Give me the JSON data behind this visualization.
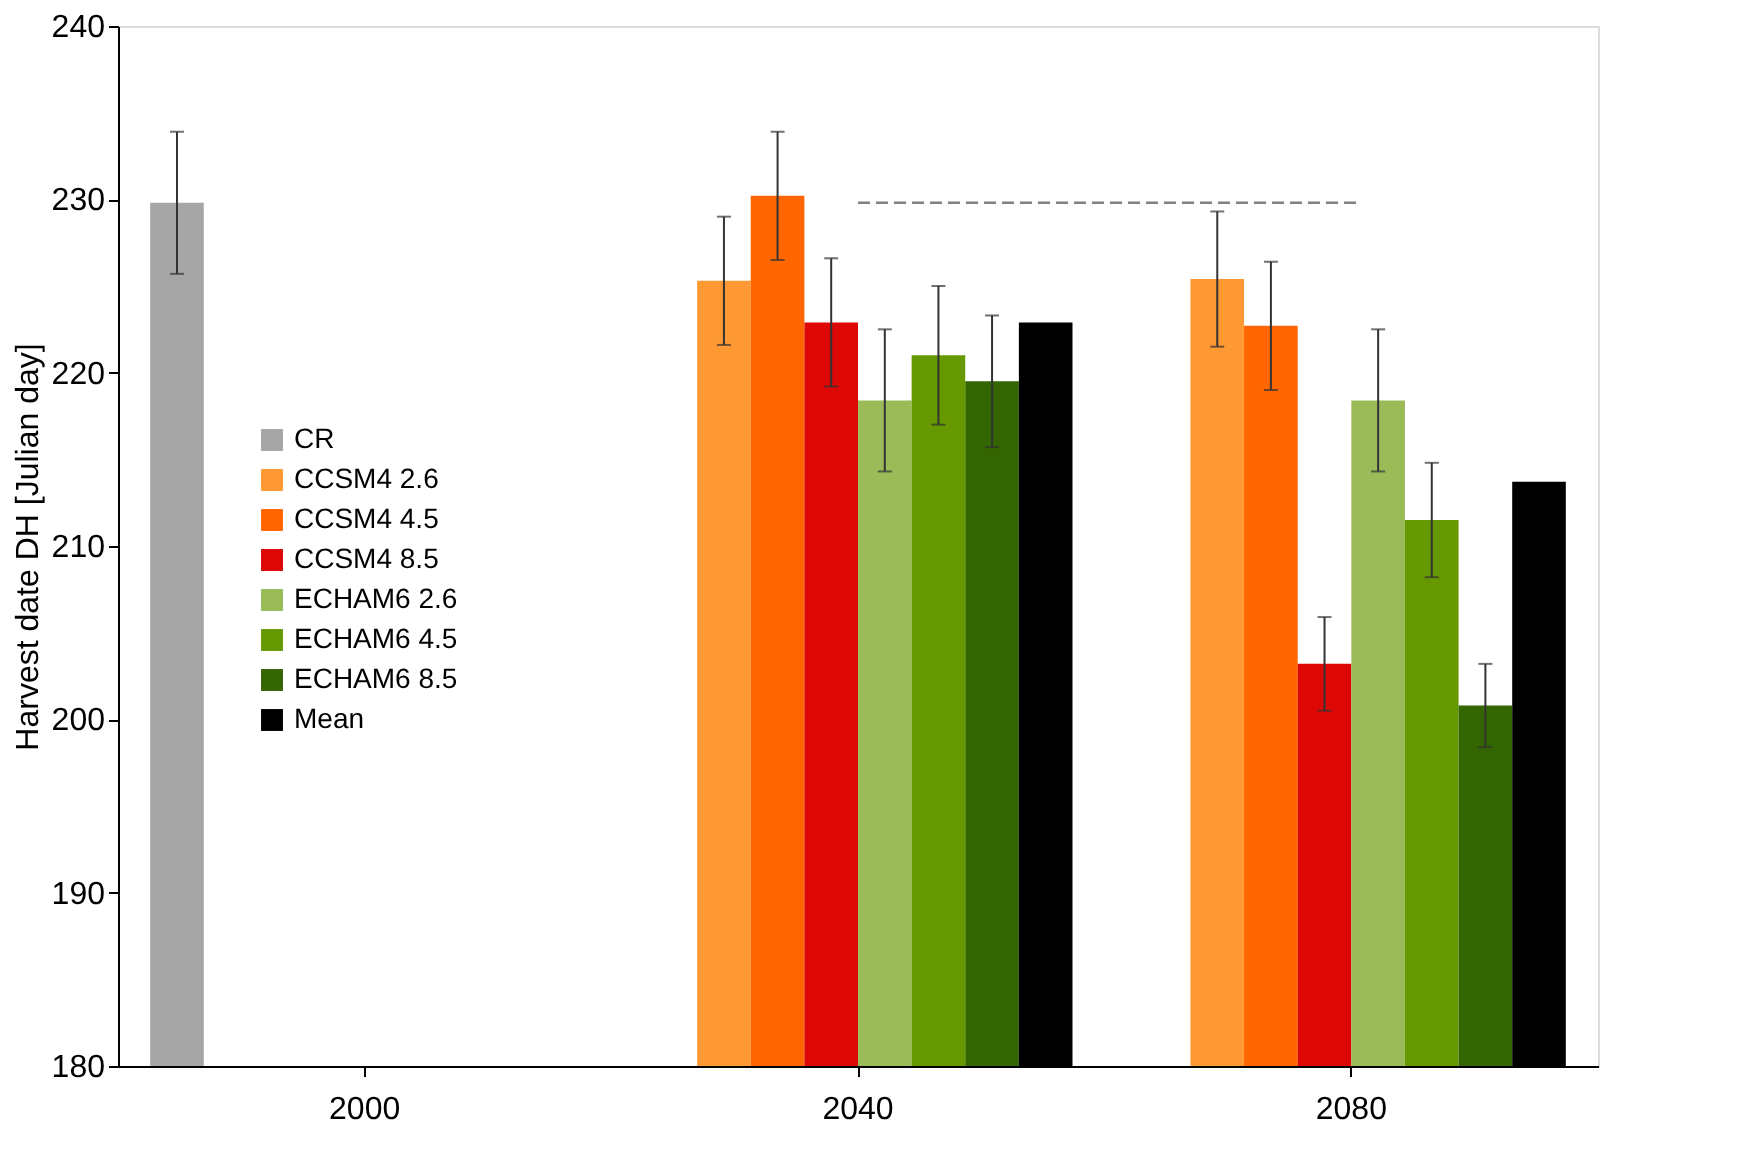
{
  "chart_data": {
    "type": "bar",
    "ylabel": "Harvest date DH [Julian day]",
    "categories": [
      "2000",
      "2040",
      "2080"
    ],
    "series": [
      {
        "name": "CR",
        "color": "#a6a6a6",
        "values": [
          229.8,
          null,
          null
        ],
        "errors": [
          4.1,
          null,
          null
        ]
      },
      {
        "name": "CCSM4 2.6",
        "color": "#ff9933",
        "values": [
          null,
          225.3,
          225.4
        ],
        "errors": [
          null,
          3.7,
          3.9
        ]
      },
      {
        "name": "CCSM4 4.5",
        "color": "#ff6600",
        "values": [
          null,
          230.2,
          222.7
        ],
        "errors": [
          null,
          3.7,
          3.7
        ]
      },
      {
        "name": "CCSM4 8.5",
        "color": "#dd0806",
        "values": [
          null,
          222.9,
          203.2
        ],
        "errors": [
          null,
          3.7,
          2.7
        ]
      },
      {
        "name": "ECHAM6 2.6",
        "color": "#9bbb59",
        "values": [
          null,
          218.4,
          218.4
        ],
        "errors": [
          null,
          4.1,
          4.1
        ]
      },
      {
        "name": "ECHAM6 4.5",
        "color": "#669900",
        "values": [
          null,
          221.0,
          211.5
        ],
        "errors": [
          null,
          4.0,
          3.3
        ]
      },
      {
        "name": "ECHAM6 8.5",
        "color": "#336600",
        "values": [
          null,
          219.5,
          200.8
        ],
        "errors": [
          null,
          3.8,
          2.4
        ]
      },
      {
        "name": "Mean",
        "color": "#000000",
        "values": [
          null,
          222.9,
          213.7
        ]
      }
    ],
    "ylim": [
      180,
      240
    ],
    "yticks": [
      180,
      190,
      200,
      210,
      220,
      230,
      240
    ],
    "ref_lines": [
      {
        "axis": "y",
        "value": 229.8,
        "color": "#808080",
        "line_style": "dashed"
      }
    ],
    "legend": "left",
    "grid": false
  }
}
